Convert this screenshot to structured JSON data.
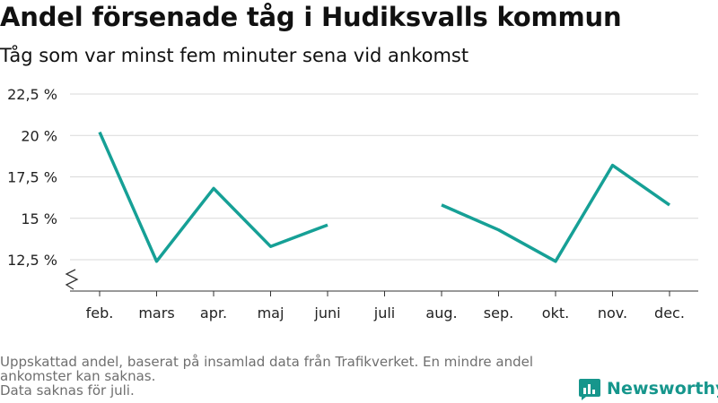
{
  "header": {
    "title": "Andel försenade tåg i Hudiksvalls kommun",
    "subtitle": "Tåg som var minst fem minuter sena vid ankomst"
  },
  "footer": {
    "note": "Uppskattad andel, baserat på insamlad data från Trafikverket. En mindre andel ankomster kan saknas.",
    "missing": "Data saknas för juli."
  },
  "logo": {
    "text": "Newsworthy",
    "icon": "bar-chart-logo-icon",
    "color": "#16968c"
  },
  "chart_data": {
    "type": "line",
    "categories": [
      "feb.",
      "mars",
      "apr.",
      "maj",
      "juni",
      "juli",
      "aug.",
      "sep.",
      "okt.",
      "nov.",
      "dec."
    ],
    "series": [
      {
        "values": [
          20.2,
          12.4,
          16.8,
          13.3,
          14.6,
          null,
          15.8,
          14.3,
          12.4,
          18.2,
          15.8
        ]
      }
    ],
    "y_ticks": [
      12.5,
      15,
      17.5,
      20,
      22.5
    ],
    "y_tick_labels": [
      "12,5 %",
      "15 %",
      "17,5 %",
      "20 %",
      "22,5 %"
    ],
    "ylim": [
      11,
      23
    ],
    "y_axis_break": true,
    "grid": true,
    "line_color": "#16a096",
    "title": "Andel försenade tåg i Hudiksvalls kommun",
    "xlabel": "",
    "ylabel": ""
  }
}
